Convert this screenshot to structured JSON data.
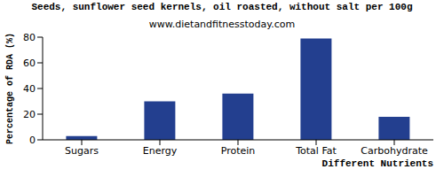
{
  "chart_data": {
    "type": "bar",
    "title": "Seeds, sunflower seed kernels, oil roasted, without salt per 100g",
    "subtitle": "www.dietandfitnesstoday.com",
    "x_label": "Different Nutrients",
    "y_label": "Percentage of RDA (%)",
    "categories": [
      "Sugars",
      "Energy",
      "Protein",
      "Total Fat",
      "Carbohydrate"
    ],
    "values": [
      3,
      30,
      36,
      79,
      18
    ],
    "color": "#233f8f",
    "ylim": [
      0,
      80
    ],
    "yticks": [
      0,
      20,
      40,
      60,
      80
    ],
    "grid": false
  }
}
